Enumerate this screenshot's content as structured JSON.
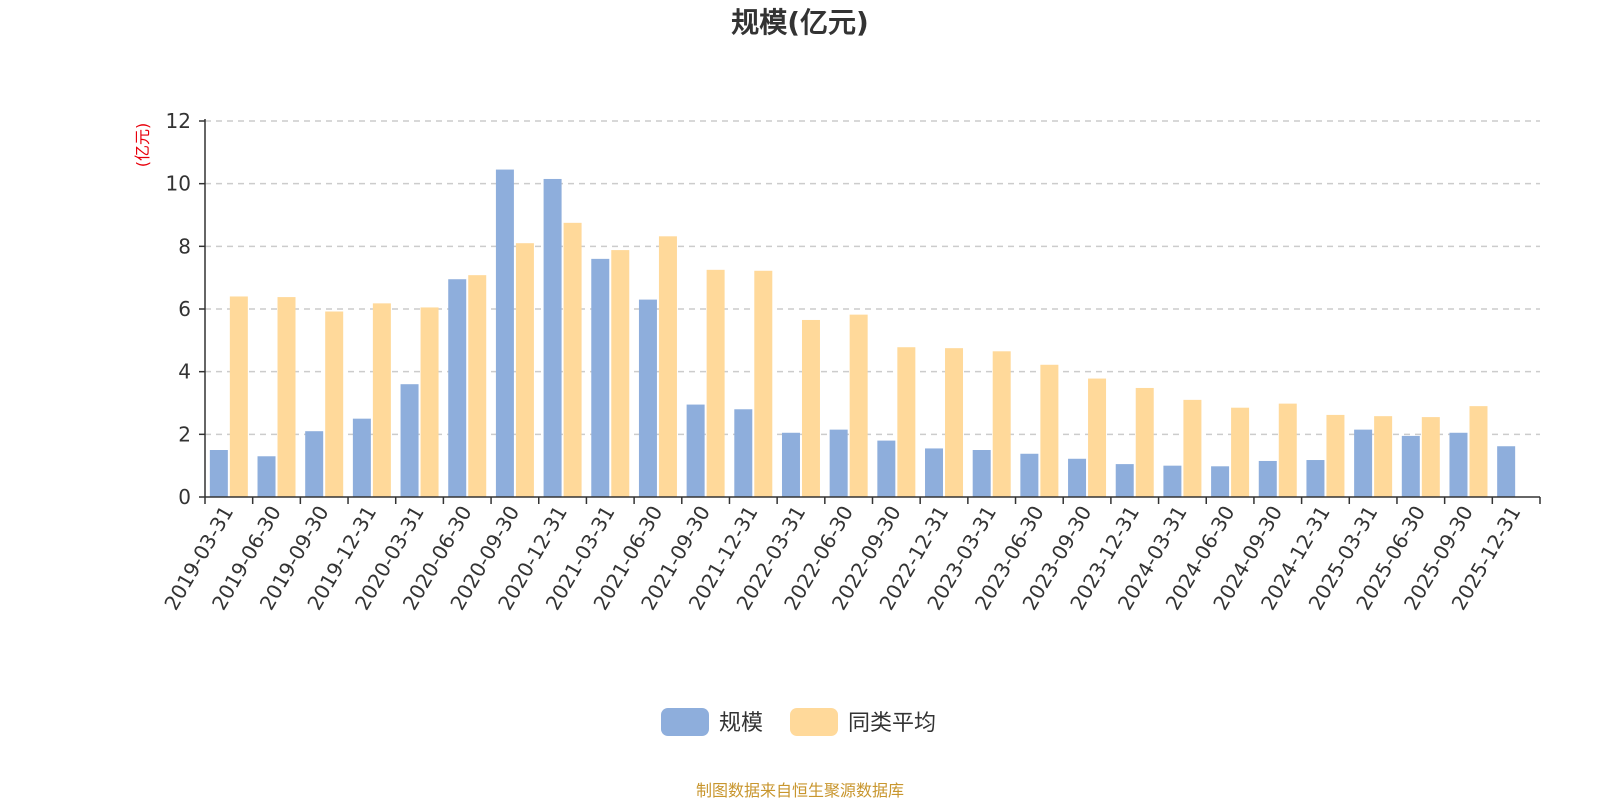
{
  "chart_data": {
    "type": "bar",
    "title": "规模(亿元)",
    "ylabel": "(亿元)",
    "ylim": [
      0,
      12
    ],
    "yticks": [
      0,
      2,
      4,
      6,
      8,
      10,
      12
    ],
    "grid": true,
    "legend_position": "bottom",
    "source_note": "制图数据来自恒生聚源数据库",
    "categories": [
      "2019-03-31",
      "2019-06-30",
      "2019-09-30",
      "2019-12-31",
      "2020-03-31",
      "2020-06-30",
      "2020-09-30",
      "2020-12-31",
      "2021-03-31",
      "2021-06-30",
      "2021-09-30",
      "2021-12-31",
      "2022-03-31",
      "2022-06-30",
      "2022-09-30",
      "2022-12-31",
      "2023-03-31",
      "2023-06-30",
      "2023-09-30",
      "2023-12-31",
      "2024-03-31",
      "2024-06-30",
      "2024-09-30",
      "2024-12-31",
      "2025-03-31",
      "2025-06-30",
      "2025-09-30",
      "2025-12-31"
    ],
    "series": [
      {
        "name": "规模",
        "color": "#8eaedc",
        "values": [
          1.5,
          1.3,
          2.1,
          2.5,
          3.6,
          6.95,
          10.45,
          10.15,
          7.6,
          6.3,
          2.95,
          2.8,
          2.05,
          2.15,
          1.8,
          1.55,
          1.5,
          1.38,
          1.22,
          1.05,
          1.0,
          0.98,
          1.15,
          1.18,
          2.15,
          1.95,
          2.05,
          1.62
        ]
      },
      {
        "name": "同类平均",
        "color": "#ffd99a",
        "values": [
          6.4,
          6.38,
          5.92,
          6.18,
          6.05,
          7.08,
          8.1,
          8.75,
          7.88,
          8.32,
          7.25,
          7.22,
          5.65,
          5.82,
          4.78,
          4.75,
          4.65,
          4.22,
          3.78,
          3.48,
          3.1,
          2.85,
          2.98,
          2.62,
          2.58,
          2.55,
          2.9,
          null
        ]
      }
    ]
  }
}
